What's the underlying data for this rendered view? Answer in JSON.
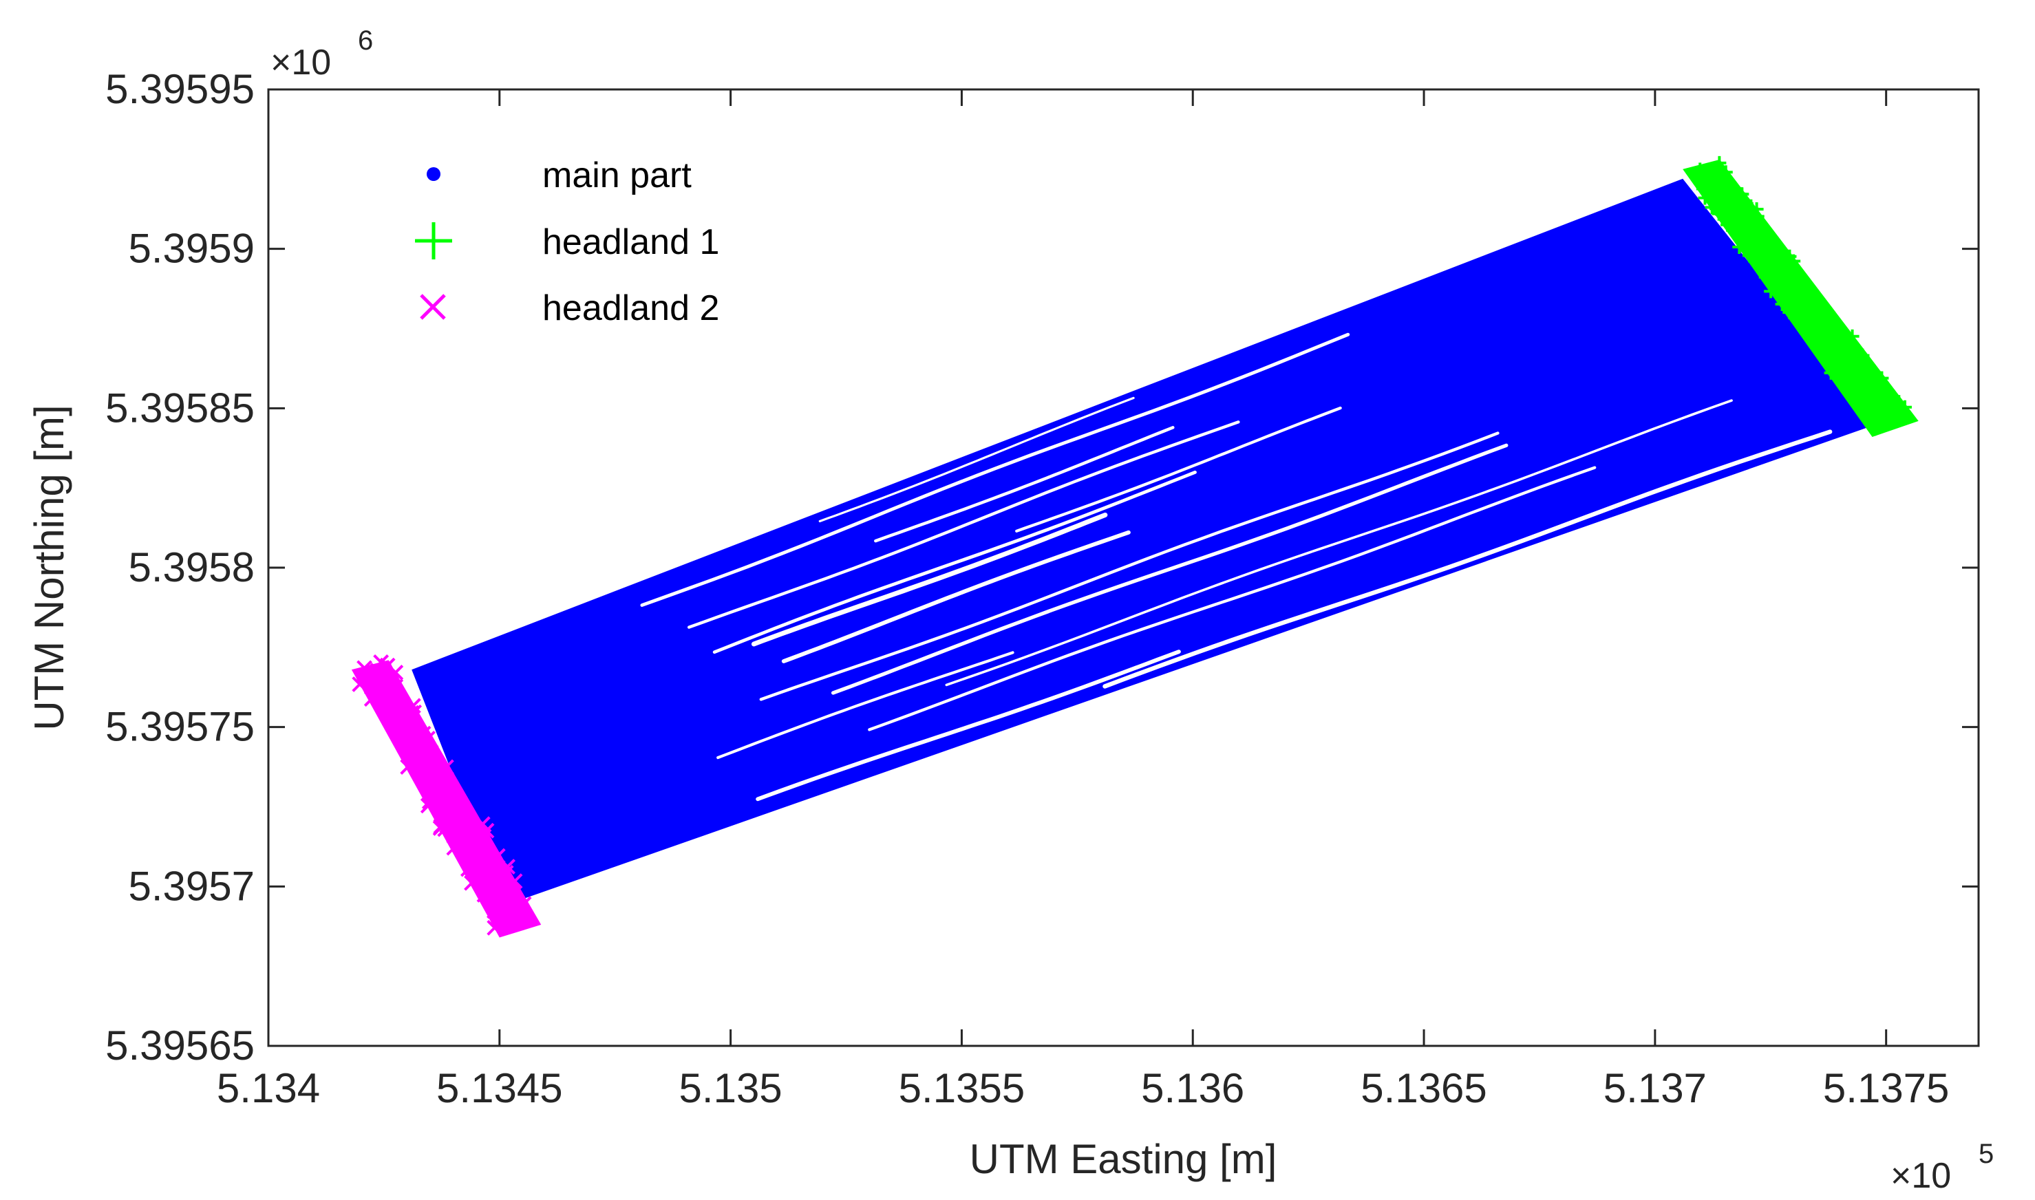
{
  "chart_data": {
    "type": "scatter",
    "xlabel": "UTM Easting [m]",
    "ylabel": "UTM Northing [m]",
    "x_exponent_label": "×10",
    "x_exponent_power": "5",
    "y_exponent_label": "×10",
    "y_exponent_power": "6",
    "xlim": [
      5.134,
      5.1377
    ],
    "ylim": [
      5.39565,
      5.39595
    ],
    "x_ticks": [
      5.134,
      5.1345,
      5.135,
      5.1355,
      5.136,
      5.1365,
      5.137,
      5.1375
    ],
    "x_tick_labels": [
      "5.134",
      "5.1345",
      "5.135",
      "5.1355",
      "5.136",
      "5.1365",
      "5.137",
      "5.1375"
    ],
    "y_ticks": [
      5.39565,
      5.3957,
      5.39575,
      5.3958,
      5.39585,
      5.3959,
      5.39595
    ],
    "y_tick_labels": [
      "5.39565",
      "5.3957",
      "5.39575",
      "5.3958",
      "5.39585",
      "5.3959",
      "5.39595"
    ],
    "grid": false,
    "legend_position": "top-left",
    "legend": [
      "main part",
      "headland 1",
      "headland 2"
    ],
    "series": [
      {
        "name": "main part",
        "marker": "dot",
        "color": "#0000ff",
        "description_corners": {
          "start_edge": [
            [
              5.13431,
              5.395768
            ],
            [
              5.13451,
              5.395694
            ]
          ],
          "end_edge": [
            [
              5.13706,
              5.395922
            ],
            [
              5.13748,
              5.395845
            ]
          ]
        },
        "pass_count": 34
      },
      {
        "name": "headland 1",
        "marker": "plus",
        "color": "#00ff00",
        "band": [
          [
            5.13706,
            5.395925
          ],
          [
            5.13714,
            5.395928
          ],
          [
            5.13757,
            5.395846
          ],
          [
            5.13747,
            5.395841
          ]
        ]
      },
      {
        "name": "headland 2",
        "marker": "x",
        "color": "#ff00ff",
        "band": [
          [
            5.13418,
            5.395768
          ],
          [
            5.13426,
            5.395771
          ],
          [
            5.13459,
            5.395688
          ],
          [
            5.1345,
            5.395684
          ]
        ]
      }
    ]
  }
}
